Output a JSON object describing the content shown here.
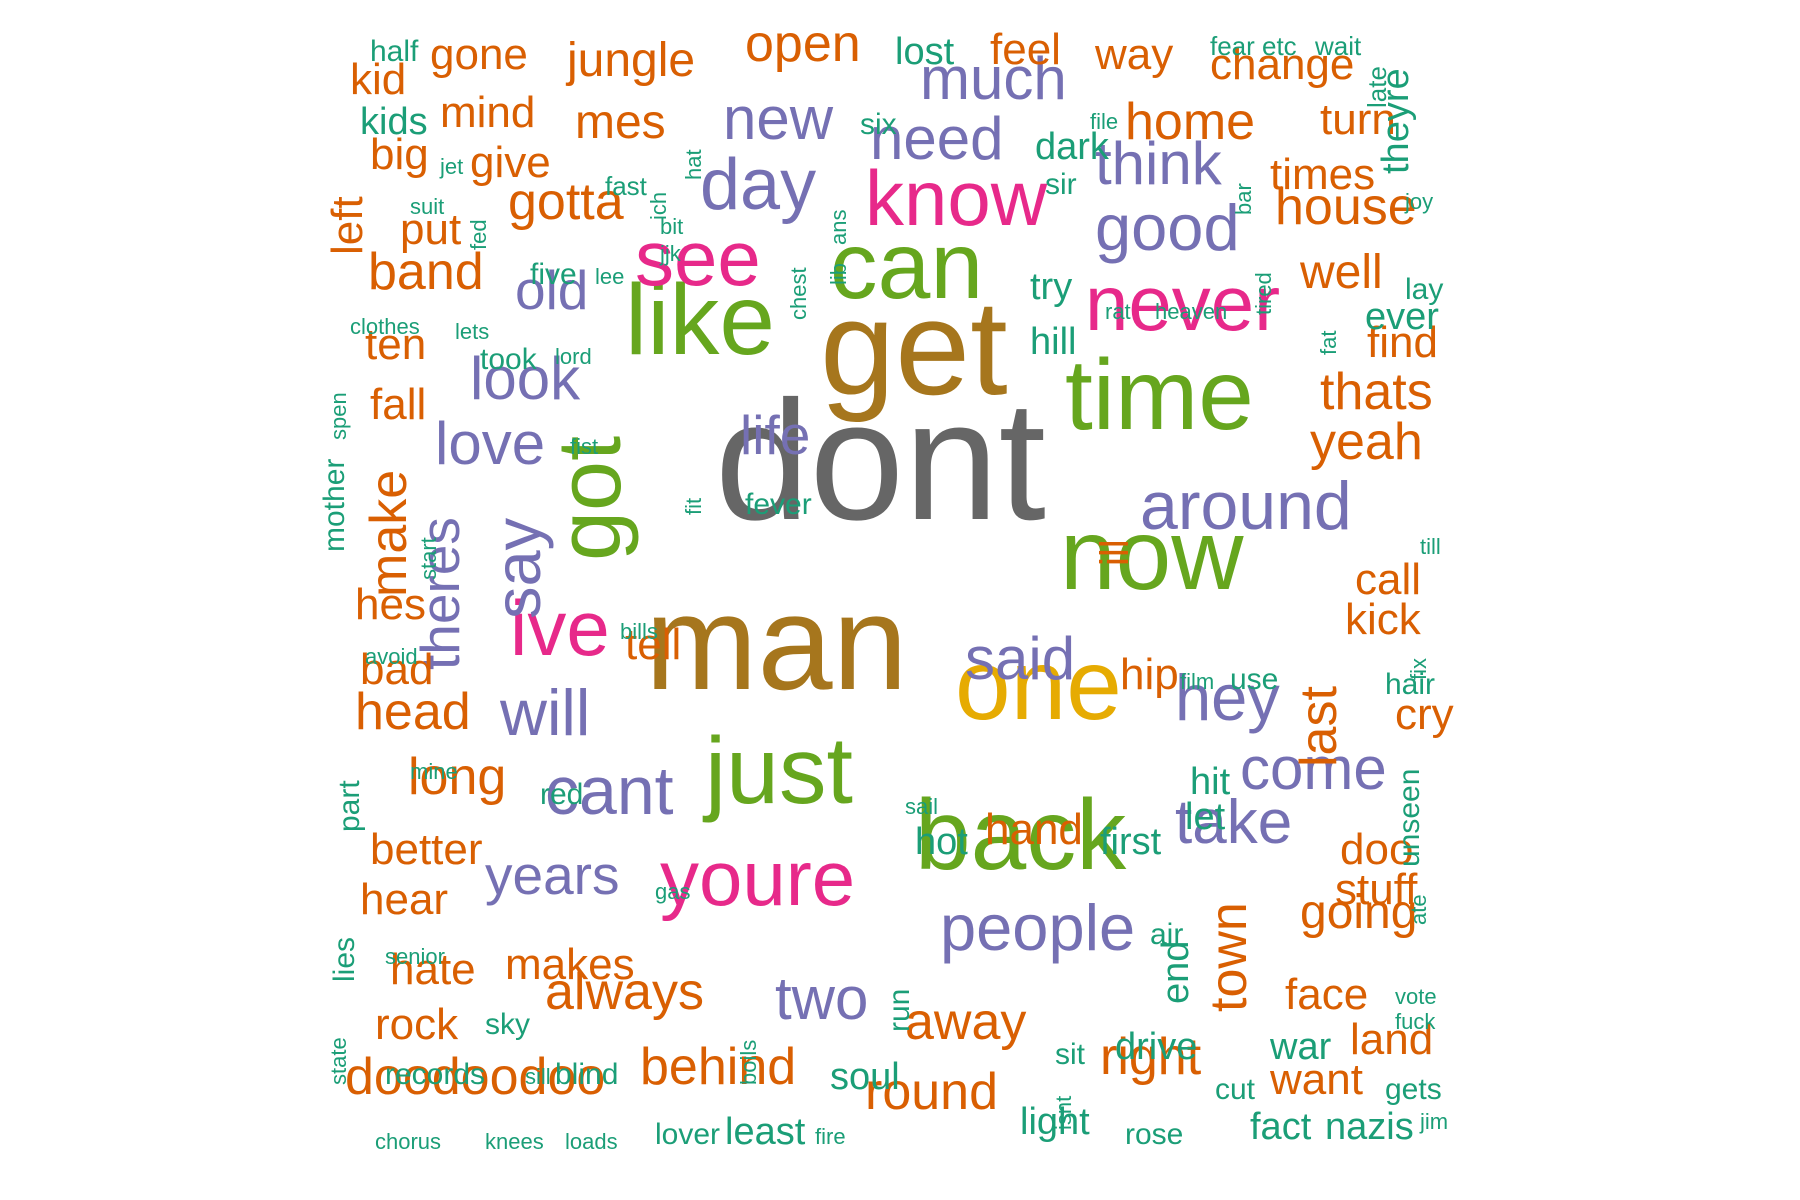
{
  "chart_data": {
    "type": "wordcloud",
    "colors": {
      "teal": "#1b9e77",
      "orange": "#d95f02",
      "purple": "#7570b3",
      "pink": "#e7298a",
      "green": "#66a61e",
      "gold": "#e6ab02",
      "brown": "#a6761d",
      "gray": "#666666"
    },
    "words": [
      {
        "text": "dont",
        "weight": 10,
        "color": "gray"
      },
      {
        "text": "man",
        "weight": 8.6,
        "color": "brown"
      },
      {
        "text": "get",
        "weight": 8.6,
        "color": "brown"
      },
      {
        "text": "like",
        "weight": 6.6,
        "color": "green"
      },
      {
        "text": "one",
        "weight": 6.6,
        "color": "gold"
      },
      {
        "text": "time",
        "weight": 6.6,
        "color": "green"
      },
      {
        "text": "just",
        "weight": 6.6,
        "color": "green"
      },
      {
        "text": "back",
        "weight": 6.6,
        "color": "green"
      },
      {
        "text": "now",
        "weight": 6.6,
        "color": "green"
      },
      {
        "text": "can",
        "weight": 6.0,
        "color": "green"
      },
      {
        "text": "got",
        "weight": 6.0,
        "color": "green"
      },
      {
        "text": "know",
        "weight": 5.2,
        "color": "pink"
      },
      {
        "text": "see",
        "weight": 5.2,
        "color": "pink"
      },
      {
        "text": "never",
        "weight": 5.2,
        "color": "pink"
      },
      {
        "text": "youre",
        "weight": 5.2,
        "color": "pink"
      },
      {
        "text": "ive",
        "weight": 5.2,
        "color": "pink"
      },
      {
        "text": "day",
        "weight": 4.7,
        "color": "purple"
      },
      {
        "text": "cant",
        "weight": 4.7,
        "color": "purple"
      },
      {
        "text": "around",
        "weight": 4.7,
        "color": "purple"
      },
      {
        "text": "good",
        "weight": 4.4,
        "color": "purple"
      },
      {
        "text": "say",
        "weight": 4.4,
        "color": "purple"
      },
      {
        "text": "hey",
        "weight": 4.4,
        "color": "purple"
      },
      {
        "text": "will",
        "weight": 4.4,
        "color": "purple"
      },
      {
        "text": "people",
        "weight": 4.4,
        "color": "purple"
      },
      {
        "text": "take",
        "weight": 4.4,
        "color": "purple"
      },
      {
        "text": "look",
        "weight": 4.2,
        "color": "purple"
      },
      {
        "text": "love",
        "weight": 4.2,
        "color": "purple"
      },
      {
        "text": "need",
        "weight": 4.2,
        "color": "purple"
      },
      {
        "text": "much",
        "weight": 4.2,
        "color": "purple"
      },
      {
        "text": "think",
        "weight": 4.2,
        "color": "purple"
      },
      {
        "text": "new",
        "weight": 4.2,
        "color": "purple"
      },
      {
        "text": "said",
        "weight": 4.2,
        "color": "purple"
      },
      {
        "text": "come",
        "weight": 4.2,
        "color": "purple"
      },
      {
        "text": "two",
        "weight": 4.2,
        "color": "purple"
      },
      {
        "text": "theres",
        "weight": 4.0,
        "color": "purple"
      },
      {
        "text": "old",
        "weight": 4.0,
        "color": "purple"
      },
      {
        "text": "life",
        "weight": 4.0,
        "color": "purple"
      },
      {
        "text": "years",
        "weight": 4.0,
        "color": "purple"
      },
      {
        "text": "open",
        "weight": 3.9,
        "color": "orange"
      },
      {
        "text": "home",
        "weight": 3.9,
        "color": "orange"
      },
      {
        "text": "house",
        "weight": 3.9,
        "color": "orange"
      },
      {
        "text": "thats",
        "weight": 3.9,
        "color": "orange"
      },
      {
        "text": "yeah",
        "weight": 3.9,
        "color": "orange"
      },
      {
        "text": "last",
        "weight": 3.9,
        "color": "orange"
      },
      {
        "text": "town",
        "weight": 3.9,
        "color": "orange"
      },
      {
        "text": "away",
        "weight": 3.9,
        "color": "orange"
      },
      {
        "text": "right",
        "weight": 3.9,
        "color": "orange"
      },
      {
        "text": "round",
        "weight": 3.9,
        "color": "orange"
      },
      {
        "text": "behind",
        "weight": 3.9,
        "color": "orange"
      },
      {
        "text": "always",
        "weight": 3.9,
        "color": "orange"
      },
      {
        "text": "doodoodoo",
        "weight": 3.9,
        "color": "orange"
      },
      {
        "text": "head",
        "weight": 3.9,
        "color": "orange"
      },
      {
        "text": "long",
        "weight": 3.9,
        "color": "orange"
      },
      {
        "text": "make",
        "weight": 3.9,
        "color": "orange"
      },
      {
        "text": "gotta",
        "weight": 3.9,
        "color": "orange"
      },
      {
        "text": "band",
        "weight": 3.9,
        "color": "orange"
      },
      {
        "text": "jungle",
        "weight": 3.7,
        "color": "orange"
      },
      {
        "text": "mes",
        "weight": 3.7,
        "color": "orange"
      },
      {
        "text": "going",
        "weight": 3.7,
        "color": "orange"
      },
      {
        "text": "well",
        "weight": 3.7,
        "color": "orange"
      },
      {
        "text": "change",
        "weight": 3.5,
        "color": "orange"
      },
      {
        "text": "way",
        "weight": 3.5,
        "color": "orange"
      },
      {
        "text": "feel",
        "weight": 3.5,
        "color": "orange"
      },
      {
        "text": "times",
        "weight": 3.5,
        "color": "orange"
      },
      {
        "text": "turn",
        "weight": 3.5,
        "color": "orange"
      },
      {
        "text": "find",
        "weight": 3.5,
        "color": "orange"
      },
      {
        "text": "call",
        "weight": 3.5,
        "color": "orange"
      },
      {
        "text": "kick",
        "weight": 3.5,
        "color": "orange"
      },
      {
        "text": "doo",
        "weight": 3.5,
        "color": "orange"
      },
      {
        "text": "stuff",
        "weight": 3.5,
        "color": "orange"
      },
      {
        "text": "face",
        "weight": 3.5,
        "color": "orange"
      },
      {
        "text": "land",
        "weight": 3.5,
        "color": "orange"
      },
      {
        "text": "want",
        "weight": 3.5,
        "color": "orange"
      },
      {
        "text": "hand",
        "weight": 3.5,
        "color": "orange"
      },
      {
        "text": "hip",
        "weight": 3.5,
        "color": "orange"
      },
      {
        "text": "tell",
        "weight": 3.5,
        "color": "orange"
      },
      {
        "text": "hes",
        "weight": 3.5,
        "color": "orange"
      },
      {
        "text": "bad",
        "weight": 3.5,
        "color": "orange"
      },
      {
        "text": "better",
        "weight": 3.5,
        "color": "orange"
      },
      {
        "text": "hear",
        "weight": 3.5,
        "color": "orange"
      },
      {
        "text": "hate",
        "weight": 3.5,
        "color": "orange"
      },
      {
        "text": "rock",
        "weight": 3.5,
        "color": "orange"
      },
      {
        "text": "makes",
        "weight": 3.5,
        "color": "orange"
      },
      {
        "text": "gone",
        "weight": 3.5,
        "color": "orange"
      },
      {
        "text": "mind",
        "weight": 3.5,
        "color": "orange"
      },
      {
        "text": "give",
        "weight": 3.5,
        "color": "orange"
      },
      {
        "text": "big",
        "weight": 3.5,
        "color": "orange"
      },
      {
        "text": "put",
        "weight": 3.5,
        "color": "orange"
      },
      {
        "text": "kid",
        "weight": 3.5,
        "color": "orange"
      },
      {
        "text": "left",
        "weight": 3.5,
        "color": "orange"
      },
      {
        "text": "ten",
        "weight": 3.5,
        "color": "orange"
      },
      {
        "text": "fall",
        "weight": 3.5,
        "color": "orange"
      },
      {
        "text": "cry",
        "weight": 3.5,
        "color": "orange"
      },
      {
        "text": "ill",
        "weight": 3.2,
        "color": "orange"
      },
      {
        "text": "lost",
        "weight": 3.0,
        "color": "teal"
      },
      {
        "text": "dark",
        "weight": 3.0,
        "color": "teal"
      },
      {
        "text": "try",
        "weight": 3.0,
        "color": "teal"
      },
      {
        "text": "hill",
        "weight": 3.0,
        "color": "teal"
      },
      {
        "text": "ever",
        "weight": 3.0,
        "color": "teal"
      },
      {
        "text": "theyre",
        "weight": 3.0,
        "color": "teal"
      },
      {
        "text": "end",
        "weight": 3.0,
        "color": "teal"
      },
      {
        "text": "first",
        "weight": 3.0,
        "color": "teal"
      },
      {
        "text": "drive",
        "weight": 3.0,
        "color": "teal"
      },
      {
        "text": "light",
        "weight": 3.0,
        "color": "teal"
      },
      {
        "text": "soul",
        "weight": 3.0,
        "color": "teal"
      },
      {
        "text": "least",
        "weight": 3.0,
        "color": "teal"
      },
      {
        "text": "hot",
        "weight": 3.0,
        "color": "teal"
      },
      {
        "text": "hit",
        "weight": 3.0,
        "color": "teal"
      },
      {
        "text": "let",
        "weight": 3.0,
        "color": "teal"
      },
      {
        "text": "war",
        "weight": 3.0,
        "color": "teal"
      },
      {
        "text": "fact",
        "weight": 3.0,
        "color": "teal"
      },
      {
        "text": "nazis",
        "weight": 3.0,
        "color": "teal"
      },
      {
        "text": "kids",
        "weight": 3.0,
        "color": "teal"
      },
      {
        "text": "mother",
        "weight": 2.6,
        "color": "teal"
      },
      {
        "text": "part",
        "weight": 2.6,
        "color": "teal"
      },
      {
        "text": "lies",
        "weight": 2.6,
        "color": "teal"
      },
      {
        "text": "sky",
        "weight": 2.6,
        "color": "teal"
      },
      {
        "text": "red",
        "weight": 2.6,
        "color": "teal"
      },
      {
        "text": "blind",
        "weight": 2.6,
        "color": "teal"
      },
      {
        "text": "records",
        "weight": 2.6,
        "color": "teal"
      },
      {
        "text": "took",
        "weight": 2.6,
        "color": "teal"
      },
      {
        "text": "use",
        "weight": 2.6,
        "color": "teal"
      },
      {
        "text": "run",
        "weight": 2.6,
        "color": "teal"
      },
      {
        "text": "six",
        "weight": 2.6,
        "color": "teal"
      },
      {
        "text": "sir",
        "weight": 2.6,
        "color": "teal"
      },
      {
        "text": "hair",
        "weight": 2.6,
        "color": "teal"
      },
      {
        "text": "air",
        "weight": 2.6,
        "color": "teal"
      },
      {
        "text": "sit",
        "weight": 2.6,
        "color": "teal"
      },
      {
        "text": "rose",
        "weight": 2.6,
        "color": "teal"
      },
      {
        "text": "cut",
        "weight": 2.6,
        "color": "teal"
      },
      {
        "text": "gets",
        "weight": 2.6,
        "color": "teal"
      },
      {
        "text": "lover",
        "weight": 2.6,
        "color": "teal"
      },
      {
        "text": "half",
        "weight": 2.6,
        "color": "teal"
      },
      {
        "text": "five",
        "weight": 2.6,
        "color": "teal"
      },
      {
        "text": "fever",
        "weight": 2.6,
        "color": "teal"
      },
      {
        "text": "lay",
        "weight": 2.6,
        "color": "teal"
      },
      {
        "text": "unseen",
        "weight": 2.6,
        "color": "teal"
      },
      {
        "text": "fear",
        "weight": 2.3,
        "color": "teal"
      },
      {
        "text": "etc",
        "weight": 2.3,
        "color": "teal"
      },
      {
        "text": "wait",
        "weight": 2.3,
        "color": "teal"
      },
      {
        "text": "late",
        "weight": 2.3,
        "color": "teal"
      },
      {
        "text": "file",
        "weight": 2.0,
        "color": "teal"
      },
      {
        "text": "hat",
        "weight": 2.0,
        "color": "teal"
      },
      {
        "text": "fast",
        "weight": 2.3,
        "color": "teal"
      },
      {
        "text": "ich",
        "weight": 2.0,
        "color": "teal"
      },
      {
        "text": "bit",
        "weight": 2.0,
        "color": "teal"
      },
      {
        "text": "jjk",
        "weight": 2.0,
        "color": "teal"
      },
      {
        "text": "jet",
        "weight": 2.0,
        "color": "teal"
      },
      {
        "text": "suit",
        "weight": 2.0,
        "color": "teal"
      },
      {
        "text": "fed",
        "weight": 2.0,
        "color": "teal"
      },
      {
        "text": "ans",
        "weight": 2.0,
        "color": "teal"
      },
      {
        "text": "lib",
        "weight": 2.0,
        "color": "teal"
      },
      {
        "text": "chest",
        "weight": 2.0,
        "color": "teal"
      },
      {
        "text": "bar",
        "weight": 2.0,
        "color": "teal"
      },
      {
        "text": "joy",
        "weight": 2.0,
        "color": "teal"
      },
      {
        "text": "tired",
        "weight": 2.0,
        "color": "teal"
      },
      {
        "text": "fat",
        "weight": 2.0,
        "color": "teal"
      },
      {
        "text": "rat",
        "weight": 2.0,
        "color": "teal"
      },
      {
        "text": "heaven",
        "weight": 2.0,
        "color": "teal"
      },
      {
        "text": "lee",
        "weight": 2.0,
        "color": "teal"
      },
      {
        "text": "lets",
        "weight": 2.0,
        "color": "teal"
      },
      {
        "text": "lord",
        "weight": 2.0,
        "color": "teal"
      },
      {
        "text": "clothes",
        "weight": 2.0,
        "color": "teal"
      },
      {
        "text": "spen",
        "weight": 2.0,
        "color": "teal"
      },
      {
        "text": "fist",
        "weight": 2.0,
        "color": "teal"
      },
      {
        "text": "fit",
        "weight": 2.0,
        "color": "teal"
      },
      {
        "text": "start",
        "weight": 2.0,
        "color": "teal"
      },
      {
        "text": "till",
        "weight": 2.0,
        "color": "teal"
      },
      {
        "text": "bills",
        "weight": 2.0,
        "color": "teal"
      },
      {
        "text": "avoid",
        "weight": 2.0,
        "color": "teal"
      },
      {
        "text": "fix",
        "weight": 2.0,
        "color": "teal"
      },
      {
        "text": "film",
        "weight": 2.0,
        "color": "teal"
      },
      {
        "text": "mine",
        "weight": 2.0,
        "color": "teal"
      },
      {
        "text": "sail",
        "weight": 2.0,
        "color": "teal"
      },
      {
        "text": "gas",
        "weight": 2.0,
        "color": "teal"
      },
      {
        "text": "ate",
        "weight": 2.0,
        "color": "teal"
      },
      {
        "text": "senior",
        "weight": 2.0,
        "color": "teal"
      },
      {
        "text": "vote",
        "weight": 2.0,
        "color": "teal"
      },
      {
        "text": "fuck",
        "weight": 2.0,
        "color": "teal"
      },
      {
        "text": "state",
        "weight": 2.0,
        "color": "teal"
      },
      {
        "text": "boils",
        "weight": 2.0,
        "color": "teal"
      },
      {
        "text": "isnt",
        "weight": 2.0,
        "color": "teal"
      },
      {
        "text": "sill",
        "weight": 2.0,
        "color": "teal"
      },
      {
        "text": "jim",
        "weight": 2.0,
        "color": "teal"
      },
      {
        "text": "chorus",
        "weight": 2.0,
        "color": "teal"
      },
      {
        "text": "knees",
        "weight": 2.0,
        "color": "teal"
      },
      {
        "text": "loads",
        "weight": 2.0,
        "color": "teal"
      },
      {
        "text": "fire",
        "weight": 2.0,
        "color": "teal"
      }
    ]
  }
}
